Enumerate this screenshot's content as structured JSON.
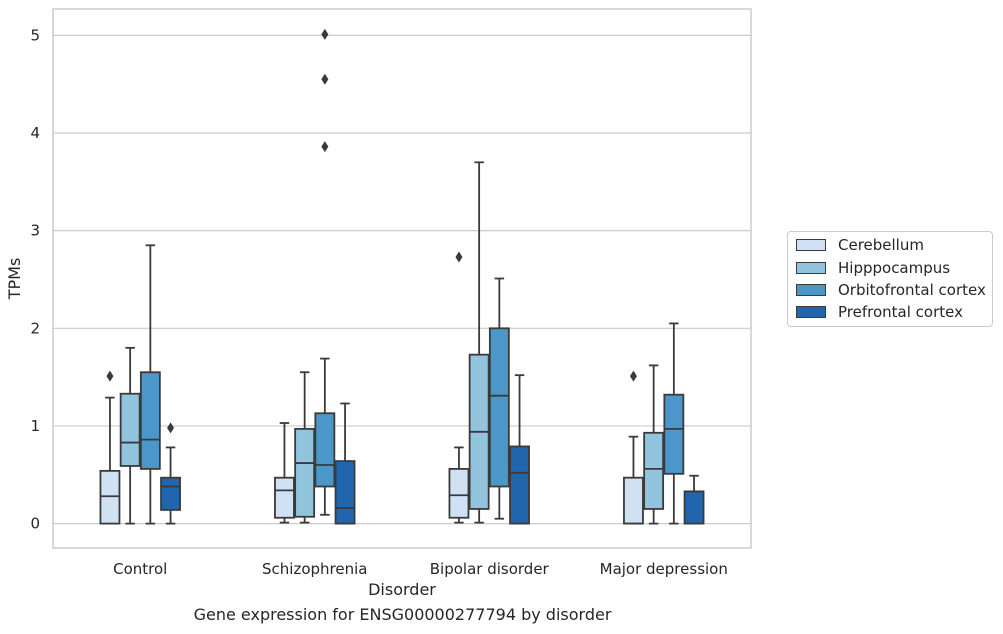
{
  "chart_data": {
    "type": "box",
    "title": "",
    "caption": "Gene expression for ENSG00000277794 by disorder",
    "xlabel": "Disorder",
    "ylabel": "TPMs",
    "ylim": [
      -0.25,
      5.27
    ],
    "yticks": [
      "0",
      "1",
      "2",
      "3",
      "4",
      "5"
    ],
    "grid": true,
    "legend_position": "right",
    "categories": [
      "Control",
      "Schizophrenia",
      "Bipolar disorder",
      "Major depression"
    ],
    "series": [
      {
        "name": "Cerebellum",
        "color": "#cfe1f2",
        "boxes": [
          {
            "whislo": 0,
            "q1": 0,
            "med": 0.28,
            "q3": 0.54,
            "whishi": 1.29,
            "fliers": [
              1.51
            ]
          },
          {
            "whislo": 0.01,
            "q1": 0.06,
            "med": 0.34,
            "q3": 0.47,
            "whishi": 1.03,
            "fliers": []
          },
          {
            "whislo": 0.01,
            "q1": 0.06,
            "med": 0.29,
            "q3": 0.56,
            "whishi": 0.78,
            "fliers": [
              2.73
            ]
          },
          {
            "whislo": 0,
            "q1": 0,
            "med": 0,
            "q3": 0.47,
            "whishi": 0.89,
            "fliers": [
              1.51
            ]
          }
        ]
      },
      {
        "name": "Hipppocampus",
        "color": "#93c4de",
        "boxes": [
          {
            "whislo": 0,
            "q1": 0.59,
            "med": 0.83,
            "q3": 1.33,
            "whishi": 1.8,
            "fliers": []
          },
          {
            "whislo": 0.01,
            "q1": 0.07,
            "med": 0.62,
            "q3": 0.97,
            "whishi": 1.55,
            "fliers": []
          },
          {
            "whislo": 0.01,
            "q1": 0.15,
            "med": 0.94,
            "q3": 1.73,
            "whishi": 3.7,
            "fliers": []
          },
          {
            "whislo": 0,
            "q1": 0.15,
            "med": 0.56,
            "q3": 0.93,
            "whishi": 1.62,
            "fliers": []
          }
        ]
      },
      {
        "name": "Orbitofrontal cortex",
        "color": "#4b97c9",
        "boxes": [
          {
            "whislo": 0,
            "q1": 0.56,
            "med": 0.86,
            "q3": 1.55,
            "whishi": 2.85,
            "fliers": []
          },
          {
            "whislo": 0.09,
            "q1": 0.38,
            "med": 0.6,
            "q3": 1.13,
            "whishi": 1.69,
            "fliers": [
              3.86,
              4.55,
              5.01
            ]
          },
          {
            "whislo": 0.05,
            "q1": 0.38,
            "med": 1.31,
            "q3": 2.0,
            "whishi": 2.51,
            "fliers": []
          },
          {
            "whislo": 0,
            "q1": 0.51,
            "med": 0.97,
            "q3": 1.32,
            "whishi": 2.05,
            "fliers": []
          }
        ]
      },
      {
        "name": "Prefrontal cortex",
        "color": "#2166ac",
        "boxes": [
          {
            "whislo": 0,
            "q1": 0.14,
            "med": 0.38,
            "q3": 0.47,
            "whishi": 0.78,
            "fliers": [
              0.98
            ]
          },
          {
            "whislo": 0,
            "q1": 0,
            "med": 0.16,
            "q3": 0.64,
            "whishi": 1.23,
            "fliers": []
          },
          {
            "whislo": 0,
            "q1": 0,
            "med": 0.52,
            "q3": 0.79,
            "whishi": 1.52,
            "fliers": []
          },
          {
            "whislo": 0,
            "q1": 0,
            "med": 0.33,
            "q3": 0.33,
            "whishi": 0.49,
            "fliers": []
          }
        ]
      }
    ]
  }
}
